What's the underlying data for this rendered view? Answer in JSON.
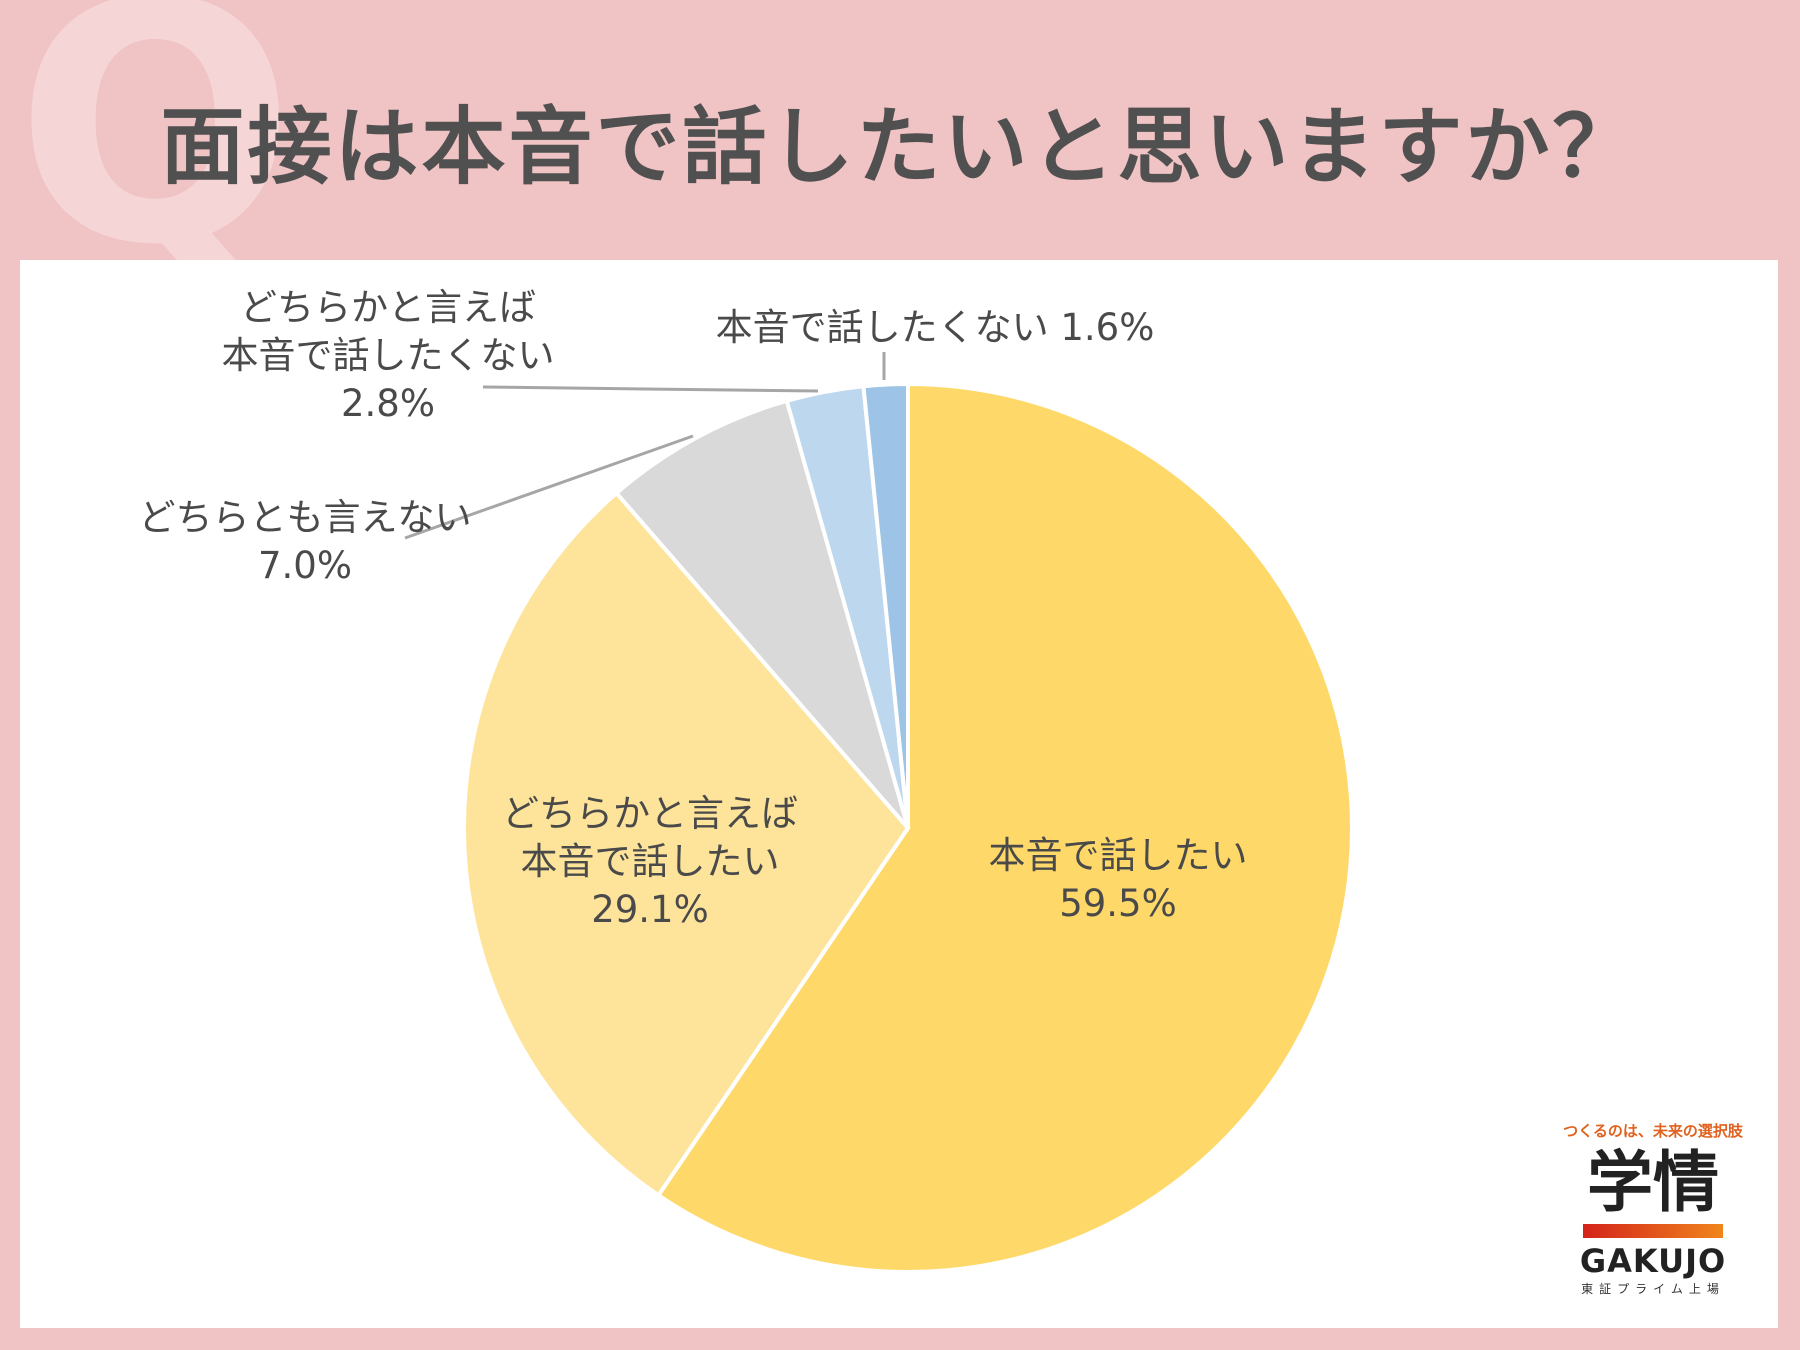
{
  "header": {
    "q_mark": "Q",
    "title": "面接は本音で話したいと思いますか？"
  },
  "chart_data": {
    "type": "pie",
    "title": "面接は本音で話したいと思いますか？",
    "slices": [
      {
        "label_lines": [
          "本音で話したい"
        ],
        "value": 59.5,
        "value_label": "59.5%",
        "color": "#fed96a"
      },
      {
        "label_lines": [
          "どちらかと言えば",
          "本音で話したい"
        ],
        "value": 29.1,
        "value_label": "29.1%",
        "color": "#fee49a"
      },
      {
        "label_lines": [
          "どちらとも言えない"
        ],
        "value": 7.0,
        "value_label": "7.0%",
        "color": "#d9d9d9"
      },
      {
        "label_lines": [
          "どちらかと言えば",
          "本音で話したくない"
        ],
        "value": 2.8,
        "value_label": "2.8%",
        "color": "#bdd7ee"
      },
      {
        "label_lines": [
          "本音で話したくない"
        ],
        "value": 1.6,
        "value_label": "1.6%",
        "color": "#9dc3e6"
      }
    ]
  },
  "logo": {
    "tagline": "つくるのは、未来の選択肢",
    "mark": "学情",
    "name": "GAKUJO",
    "sub": "東証プライム上場"
  }
}
